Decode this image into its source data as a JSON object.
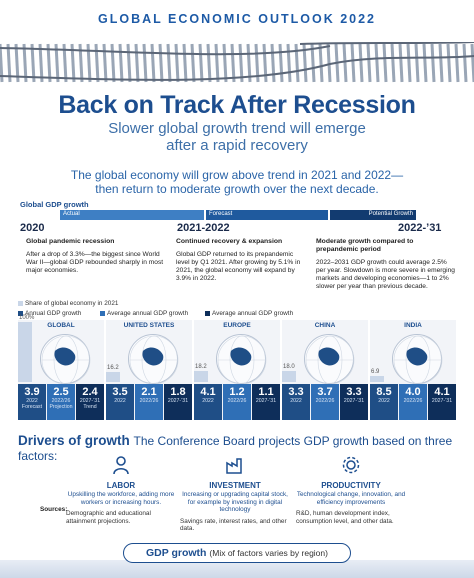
{
  "header": {
    "kicker": "GLOBAL ECONOMIC OUTLOOK 2022",
    "title": "Back on Track After Recession",
    "subtitle_1": "Slower global growth trend will emerge",
    "subtitle_2": "after a rapid recovery"
  },
  "lead": {
    "line1": "The global economy will grow above trend in 2021 and 2022—",
    "line2": "then return to moderate growth over the next decade."
  },
  "timeline": {
    "heading": "Global GDP growth",
    "phases": [
      "Actual",
      "Forecast",
      "Potential Growth"
    ],
    "years": [
      "2020",
      "2021-2022",
      "2022-’31"
    ],
    "cols": [
      {
        "title": "Global pandemic recession",
        "body": "After a drop of 3.3%—the biggest since World War II—global GDP rebounded sharply in most major economies."
      },
      {
        "title": "Continued recovery & expansion",
        "body": "Global GDP returned to its prepandemic level by Q1 2021. After growing by 5.1% in 2021, the global economy will expand by 3.9% in 2022."
      },
      {
        "title": "Moderate growth compared to prepandemic period",
        "body": "2022–2031 GDP growth could average 2.5% per year. Slowdown is more severe in emerging markets and developing economies—1 to 2% slower per year than previous decade."
      }
    ]
  },
  "legend": {
    "share": "Share of global economy in 2021",
    "annual": "Annual GDP growth",
    "avg1": "Average annual GDP growth",
    "avg2": "Average annual GDP growth"
  },
  "regions": [
    {
      "name": "GLOBAL",
      "share": "100%",
      "share_value": 100,
      "stats": [
        {
          "v": "3.9",
          "p": "2022",
          "p2": "Forecast"
        },
        {
          "v": "2.5",
          "p": "2022/26",
          "p2": "Projection"
        },
        {
          "v": "2.4",
          "p": "2027-’31",
          "p2": "Trend"
        }
      ]
    },
    {
      "name": "UNITED STATES",
      "share": "16.2",
      "share_value": 16.2,
      "stats": [
        {
          "v": "3.5",
          "p": "2022",
          "p2": ""
        },
        {
          "v": "2.1",
          "p": "2022/26",
          "p2": ""
        },
        {
          "v": "1.8",
          "p": "2027-’31",
          "p2": ""
        }
      ]
    },
    {
      "name": "EUROPE",
      "share": "18.2",
      "share_value": 18.2,
      "stats": [
        {
          "v": "4.1",
          "p": "2022",
          "p2": ""
        },
        {
          "v": "1.2",
          "p": "2022/26",
          "p2": ""
        },
        {
          "v": "1.1",
          "p": "2027-’31",
          "p2": ""
        }
      ]
    },
    {
      "name": "CHINA",
      "share": "18.0",
      "share_value": 18.0,
      "stats": [
        {
          "v": "3.3",
          "p": "2022",
          "p2": ""
        },
        {
          "v": "3.7",
          "p": "2022/26",
          "p2": ""
        },
        {
          "v": "3.3",
          "p": "2027-’31",
          "p2": ""
        }
      ]
    },
    {
      "name": "INDIA",
      "share": "6.9",
      "share_value": 6.9,
      "stats": [
        {
          "v": "8.5",
          "p": "2022",
          "p2": ""
        },
        {
          "v": "4.0",
          "p": "2022/26",
          "p2": ""
        },
        {
          "v": "4.1",
          "p": "2027-’31",
          "p2": ""
        }
      ]
    }
  ],
  "drivers": {
    "title": "Drivers of growth",
    "desc": "The Conference Board projects GDP growth based on three factors:",
    "sources_label": "Sources:",
    "factors": [
      {
        "name": "LABOR",
        "icon": "person-icon",
        "desc": "Upskilling the workforce, adding more workers or increasing hours.",
        "source": "Demographic and educational attainment projections."
      },
      {
        "name": "INVESTMENT",
        "icon": "factory-icon",
        "desc": "Increasing or upgrading capital stock, for example by investing in digital technology",
        "source": "Savings rate, interest rates, and other data."
      },
      {
        "name": "PRODUCTIVITY",
        "icon": "gear-icon",
        "desc": "Technological change, innovation, and efficiency improvements",
        "source": "R&D, human development index, consumption level, and other data."
      }
    ]
  },
  "footer": {
    "gdp_label": "GDP growth",
    "gdp_note": "(Mix of factors varies by region)"
  },
  "colors": {
    "navy": "#1d4e8f",
    "dark": "#0e2e5a",
    "mid": "#2f6fb6"
  }
}
